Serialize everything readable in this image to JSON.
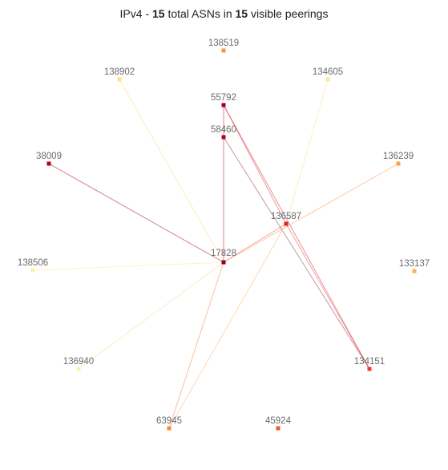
{
  "title": {
    "prefix": "IPv4 - ",
    "asn_count": "15",
    "middle": " total ASNs in ",
    "peering_count": "15",
    "suffix": " visible peerings"
  },
  "graph": {
    "nodes": [
      {
        "id": "17828",
        "color": "#8e0025"
      },
      {
        "id": "55792",
        "color": "#a3001f"
      },
      {
        "id": "58460",
        "color": "#b3001c"
      },
      {
        "id": "38009",
        "color": "#b8001d"
      },
      {
        "id": "136587",
        "color": "#dc2020"
      },
      {
        "id": "134151",
        "color": "#ec3c2a"
      },
      {
        "id": "45924",
        "color": "#f25530"
      },
      {
        "id": "63945",
        "color": "#f98b3c"
      },
      {
        "id": "138519",
        "color": "#f99640"
      },
      {
        "id": "136239",
        "color": "#fca04a"
      },
      {
        "id": "133137",
        "color": "#fdb056"
      },
      {
        "id": "138902",
        "color": "#fee285"
      },
      {
        "id": "134605",
        "color": "#fee88e"
      },
      {
        "id": "136940",
        "color": "#fff0a0"
      },
      {
        "id": "138506",
        "color": "#fff2a8"
      }
    ],
    "edges": [
      {
        "source": "17828",
        "target": "58460",
        "color": "#c3002a"
      },
      {
        "source": "17828",
        "target": "38009",
        "color": "#a8001f"
      },
      {
        "source": "17828",
        "target": "138902",
        "color": "#fed976"
      },
      {
        "source": "17828",
        "target": "138506",
        "color": "#fee894"
      },
      {
        "source": "17828",
        "target": "136940",
        "color": "#fed98a"
      },
      {
        "source": "17828",
        "target": "63945",
        "color": "#fb7a3c"
      },
      {
        "source": "17828",
        "target": "136587",
        "color": "#f24a34"
      },
      {
        "source": "17828",
        "target": "136239",
        "color": "#fb9050"
      },
      {
        "source": "55792",
        "target": "134151",
        "color": "#d01f2d"
      },
      {
        "source": "55792",
        "target": "136587",
        "color": "#e03040"
      },
      {
        "source": "58460",
        "target": "134151",
        "color": "#8c2a52"
      },
      {
        "source": "136587",
        "target": "134605",
        "color": "#fee27c"
      },
      {
        "source": "136587",
        "target": "63945",
        "color": "#fcae6a"
      },
      {
        "source": "136587",
        "target": "134151",
        "color": "#e9403a"
      },
      {
        "source": "55792",
        "target": "58460",
        "color": "#c8003a"
      }
    ]
  }
}
